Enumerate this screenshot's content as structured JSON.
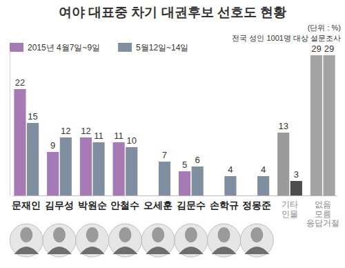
{
  "chart_data": {
    "type": "bar",
    "title": "여야 대표중 차기 대권후보 선호도 현황",
    "subtitle": "전국 성인 1001명 대상 설문조사",
    "annotations": [
      "(단위 : %)"
    ],
    "categories": [
      "문재인",
      "김무성",
      "박원순",
      "안철수",
      "오세훈",
      "김문수",
      "손학규",
      "정몽준",
      "기타 인물",
      "없음 모름 응답거절"
    ],
    "series": [
      {
        "name": "2015년 4월7일~9일",
        "color": "#a67bb5",
        "colors": [
          "#a67bb5",
          "#a67bb5",
          "#a67bb5",
          "#a67bb5",
          "#a67bb5",
          "#a67bb5",
          "#a67bb5",
          "#a67bb5",
          "#9b9b9b",
          "#a3a3a3"
        ],
        "values": [
          22,
          9,
          12,
          11,
          null,
          5,
          null,
          null,
          13,
          29
        ]
      },
      {
        "name": "5월12일~14일",
        "color": "#7f8f9f",
        "colors": [
          "#7f8f9f",
          "#7f8f9f",
          "#7f8f9f",
          "#7f8f9f",
          "#7f8f9f",
          "#7f8f9f",
          "#7f8f9f",
          "#7f8f9f",
          "#4d4d4d",
          "#a3a3a3"
        ],
        "values": [
          15,
          12,
          11,
          10,
          7,
          6,
          4,
          4,
          3,
          29
        ]
      }
    ],
    "ylim": [
      0,
      30
    ],
    "tick_labels": "x",
    "data_labels": true,
    "legend": "top-left"
  }
}
